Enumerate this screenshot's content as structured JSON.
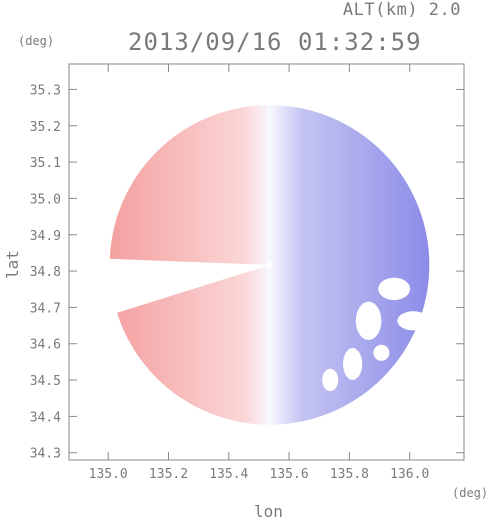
{
  "header": {
    "altitude_label": "ALT(km) 2.0",
    "timestamp": "2013/09/16 01:32:59"
  },
  "chart_data": {
    "type": "heatmap",
    "title": "2013/09/16 01:32:59",
    "subtitle": "ALT(km) 2.0",
    "xlabel": "lon",
    "ylabel": "lat",
    "x_unit": "(deg)",
    "y_unit": "(deg)",
    "xlim": [
      134.87,
      136.18
    ],
    "ylim": [
      34.28,
      35.37
    ],
    "x_ticks": [
      135.0,
      135.2,
      135.4,
      135.6,
      135.8,
      136.0
    ],
    "x_tick_labels": [
      "135.0",
      "135.2",
      "135.4",
      "135.6",
      "135.8",
      "136.0"
    ],
    "y_ticks": [
      34.3,
      34.4,
      34.5,
      34.6,
      34.7,
      34.8,
      34.9,
      35.0,
      35.1,
      35.2,
      35.3
    ],
    "y_tick_labels": [
      "34.3",
      "34.4",
      "34.5",
      "34.6",
      "34.7",
      "34.8",
      "34.9",
      "35.0",
      "35.1",
      "35.2",
      "35.3"
    ],
    "radar_center": [
      135.535,
      34.817
    ],
    "radar_range_deg": 0.53,
    "colormap": {
      "toward_color": "#f4a0a0",
      "neutral_color": "#f8f8ff",
      "away_color": "#8c8ce8"
    },
    "grid": false,
    "colors": {
      "axis": "#8a8a8a",
      "text": "#7a7a7a",
      "background": "#ffffff"
    }
  }
}
